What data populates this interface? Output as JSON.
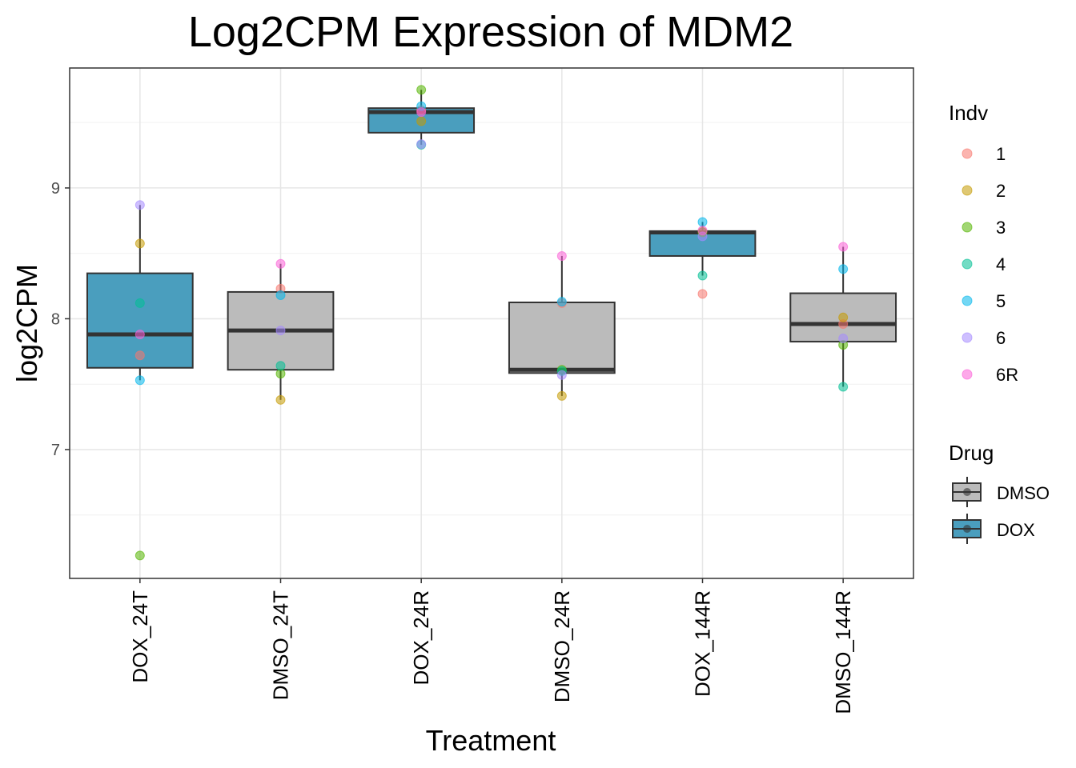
{
  "chart_data": {
    "type": "box",
    "title": "Log2CPM Expression of MDM2",
    "xlabel": "Treatment",
    "ylabel": "log2CPM",
    "ylim": [
      6.015,
      9.917
    ],
    "yticks": [
      7,
      8,
      9
    ],
    "grid": true,
    "legend_position": "right",
    "categories": [
      "DOX_24T",
      "DMSO_24T",
      "DOX_24R",
      "DMSO_24R",
      "DOX_144R",
      "DMSO_144R"
    ],
    "drug": [
      "DOX",
      "DMSO",
      "DOX",
      "DMSO",
      "DOX",
      "DMSO"
    ],
    "indv_legend": {
      "title": "Indv",
      "levels": [
        "1",
        "2",
        "3",
        "4",
        "5",
        "6",
        "6R"
      ],
      "colors": [
        "#F8766D",
        "#C49A00",
        "#53B400",
        "#00C094",
        "#00B6EB",
        "#A58AFF",
        "#FB61D7"
      ]
    },
    "drug_legend": {
      "title": "Drug",
      "levels": [
        "DMSO",
        "DOX"
      ],
      "colors": [
        "#BBBBBB",
        "#4A9EBE"
      ]
    },
    "points": {
      "DOX_24T": {
        "1": 7.72,
        "2": 8.575,
        "3": 6.19,
        "4": 8.12,
        "5": 7.53,
        "6": 8.87,
        "6R": 7.88
      },
      "DMSO_24T": {
        "1": 8.23,
        "2": 7.38,
        "3": 7.58,
        "4": 7.64,
        "5": 8.18,
        "6": 7.91,
        "6R": 8.42
      },
      "DOX_24R": {
        "1": 9.595,
        "2": 9.51,
        "3": 9.75,
        "4": 9.33,
        "5": 9.625,
        "6": 9.335,
        "6R": 9.58
      },
      "DMSO_24R": {
        "1": 8.12,
        "2": 7.41,
        "3": 7.61,
        "4": 7.6,
        "5": 8.13,
        "6": 7.57,
        "6R": 8.48
      },
      "DOX_144R": {
        "1": 8.19,
        "2": 8.665,
        "3": 8.66,
        "4": 8.33,
        "5": 8.74,
        "6": 8.63,
        "6R": 8.675
      },
      "DMSO_144R": {
        "1": 7.96,
        "2": 8.01,
        "3": 7.8,
        "4": 7.48,
        "5": 8.38,
        "6": 7.85,
        "6R": 8.55
      }
    }
  }
}
